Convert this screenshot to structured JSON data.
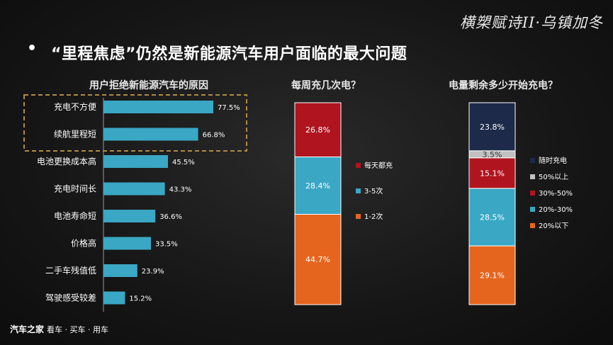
{
  "page": {
    "brush_title": "横槊赋诗II·乌镇加冬",
    "bullet": "•",
    "headline": "“里程焦虑”仍然是新能源汽车用户面临的最大问题",
    "footer_brand": "汽车之家",
    "footer_tagline": "看车 · 买车 · 用车"
  },
  "colors": {
    "hbar": "#3aa7c4",
    "series": [
      "#e5651e",
      "#3aa7c4",
      "#b0141f",
      "#c0c0c0",
      "#1e2a4a"
    ],
    "highlight_box": "#b08a4a"
  },
  "chart_data": [
    {
      "type": "bar",
      "orientation": "horizontal",
      "title": "用户拒绝新能源汽车的原因",
      "categories": [
        "充电不方便",
        "续航里程短",
        "电池更换成本高",
        "充电时间长",
        "电池寿命短",
        "价格高",
        "二手车残值低",
        "驾驶感受较差"
      ],
      "values": [
        77.5,
        66.8,
        45.5,
        43.3,
        36.6,
        33.5,
        23.9,
        15.2
      ],
      "labels": [
        "77.5%",
        "66.8%",
        "45.5%",
        "43.3%",
        "36.6%",
        "33.5%",
        "23.9%",
        "15.2%"
      ],
      "highlighted": [
        "充电不方便",
        "续航里程短"
      ],
      "xlim": [
        0,
        100
      ]
    },
    {
      "type": "bar",
      "stacked": true,
      "title": "每周充几次电？",
      "categories": [
        "1-2次",
        "3-5次",
        "每天都充"
      ],
      "values": [
        44.7,
        28.4,
        26.8
      ],
      "labels": [
        "44.7%",
        "28.4%",
        "26.8%"
      ],
      "legend_order": [
        "每天都充",
        "3-5次",
        "1-2次"
      ],
      "legend": "right"
    },
    {
      "type": "bar",
      "stacked": true,
      "title": "电量剩余多少开始充电？",
      "categories": [
        "20%以下",
        "20%-30%",
        "30%-50%",
        "50%以上",
        "随时充电"
      ],
      "values": [
        29.1,
        28.5,
        15.1,
        3.5,
        23.8
      ],
      "labels": [
        "29.1%",
        "28.5%",
        "15.1%",
        "3.5%",
        "23.8%"
      ],
      "legend_order": [
        "随时充电",
        "50%以上",
        "30%-50%",
        "20%-30%",
        "20%以下"
      ],
      "legend": "right"
    }
  ]
}
